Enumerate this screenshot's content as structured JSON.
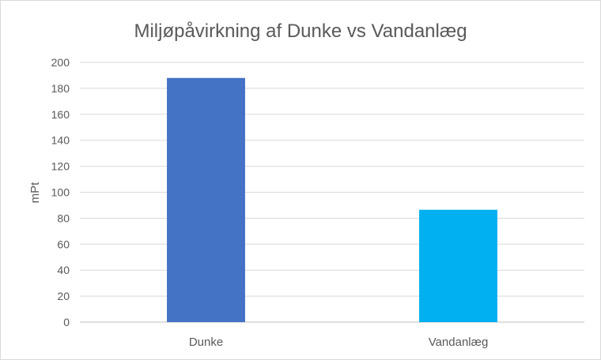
{
  "chart_data": {
    "type": "bar",
    "title": "Miljøpåvirkning af Dunke vs Vandanlæg",
    "xlabel": "",
    "ylabel": "mPt",
    "categories": [
      "Dunke",
      "Vandanlæg"
    ],
    "values": [
      188,
      86.5
    ],
    "colors": [
      "#4472C4",
      "#00B0F0"
    ],
    "ylim": [
      0,
      200
    ],
    "yticks": [
      0,
      20,
      40,
      60,
      80,
      100,
      120,
      140,
      160,
      180,
      200
    ],
    "grid": true,
    "legend": "none"
  }
}
